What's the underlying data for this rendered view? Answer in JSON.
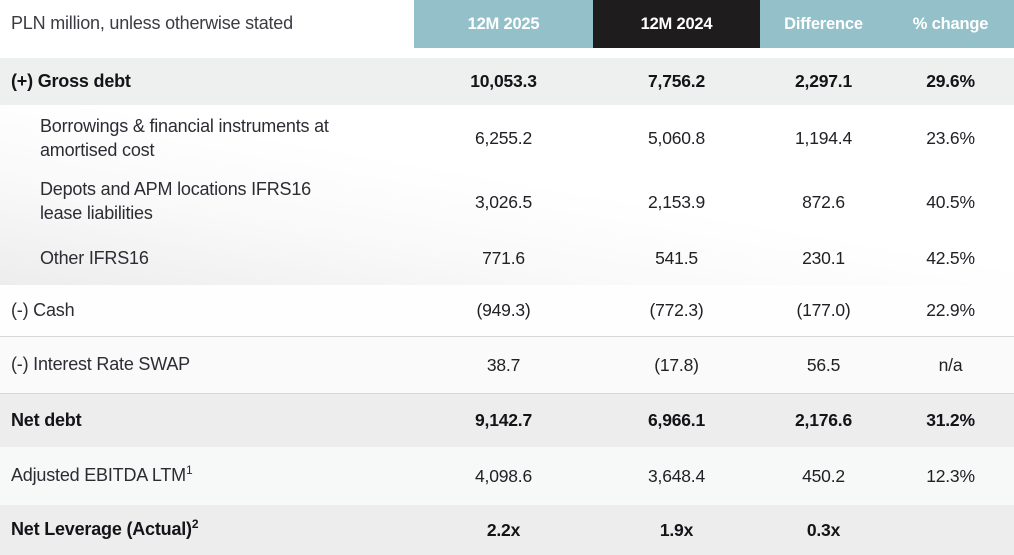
{
  "slide": {
    "header": {
      "row_label_header": "PLN million, unless otherwise stated",
      "col_2025": "12M 2025",
      "col_2024": "12M 2024",
      "col_diff": "Difference",
      "col_pct": "% change"
    },
    "colors": {
      "teal_header": "#93c0c9",
      "black_header": "#1e1c1c",
      "row_gray": "#ededee",
      "divider_gray": "#d7d7d7",
      "stray_dash": "#a6bcc2"
    },
    "rows": [
      {
        "label": "(+) Gross debt",
        "v2025": "10,053.3",
        "v2024": "7,756.2",
        "diff": "2,297.1",
        "pct": "29.6%"
      },
      {
        "label": "Borrowings & financial instruments at amortised cost",
        "v2025": "6,255.2",
        "v2024": "5,060.8",
        "diff": "1,194.4",
        "pct": "23.6%"
      },
      {
        "label": "Depots and APM locations IFRS16 lease liabilities",
        "v2025": "3,026.5",
        "v2024": "2,153.9",
        "diff": "872.6",
        "pct": "40.5%"
      },
      {
        "label": "Other IFRS16",
        "v2025": "771.6",
        "v2024": "541.5",
        "diff": "230.1",
        "pct": "42.5%"
      },
      {
        "label": "(-) Cash",
        "v2025": "(949.3)",
        "v2024": "(772.3)",
        "diff": "(177.0)",
        "pct": "22.9%"
      },
      {
        "label": "(-) Interest Rate SWAP",
        "v2025": "38.7",
        "v2024": "(17.8)",
        "diff": "56.5",
        "pct": "n/a"
      },
      {
        "label": "Net debt",
        "v2025": "9,142.7",
        "v2024": "6,966.1",
        "diff": "2,176.6",
        "pct": "31.2%"
      },
      {
        "label": "Adjusted EBITDA LTM",
        "sup": "1",
        "v2025": "4,098.6",
        "v2024": "3,648.4",
        "diff": "450.2",
        "pct": "12.3%"
      },
      {
        "label": "Net Leverage (Actual)",
        "sup": "2",
        "v2025": "2.2x",
        "v2024": "1.9x",
        "diff": "0.3x",
        "pct": ""
      }
    ]
  },
  "chart_data": {
    "type": "table",
    "title": "PLN million, unless otherwise stated",
    "columns": [
      "12M 2025",
      "12M 2024",
      "Difference",
      "% change"
    ],
    "rows": [
      [
        "(+) Gross debt",
        "10,053.3",
        "7,756.2",
        "2,297.1",
        "29.6%"
      ],
      [
        "Borrowings & financial instruments at amortised cost",
        "6,255.2",
        "5,060.8",
        "1,194.4",
        "23.6%"
      ],
      [
        "Depots and APM locations IFRS16 lease liabilities",
        "3,026.5",
        "2,153.9",
        "872.6",
        "40.5%"
      ],
      [
        "Other IFRS16",
        "771.6",
        "541.5",
        "230.1",
        "42.5%"
      ],
      [
        "(-) Cash",
        "(949.3)",
        "(772.3)",
        "(177.0)",
        "22.9%"
      ],
      [
        "(-) Interest Rate SWAP",
        "38.7",
        "(17.8)",
        "56.5",
        "n/a"
      ],
      [
        "Net debt",
        "9,142.7",
        "6,966.1",
        "2,176.6",
        "31.2%"
      ],
      [
        "Adjusted EBITDA LTM (footnote 1)",
        "4,098.6",
        "3,648.4",
        "450.2",
        "12.3%"
      ],
      [
        "Net Leverage (Actual) (footnote 2)",
        "2.2x",
        "1.9x",
        "0.3x",
        ""
      ]
    ],
    "layout_hints": {
      "bold_rows": [
        0,
        6,
        8
      ],
      "indented_rows": [
        1,
        2,
        3
      ],
      "divider_lines_around_row": 5
    }
  }
}
